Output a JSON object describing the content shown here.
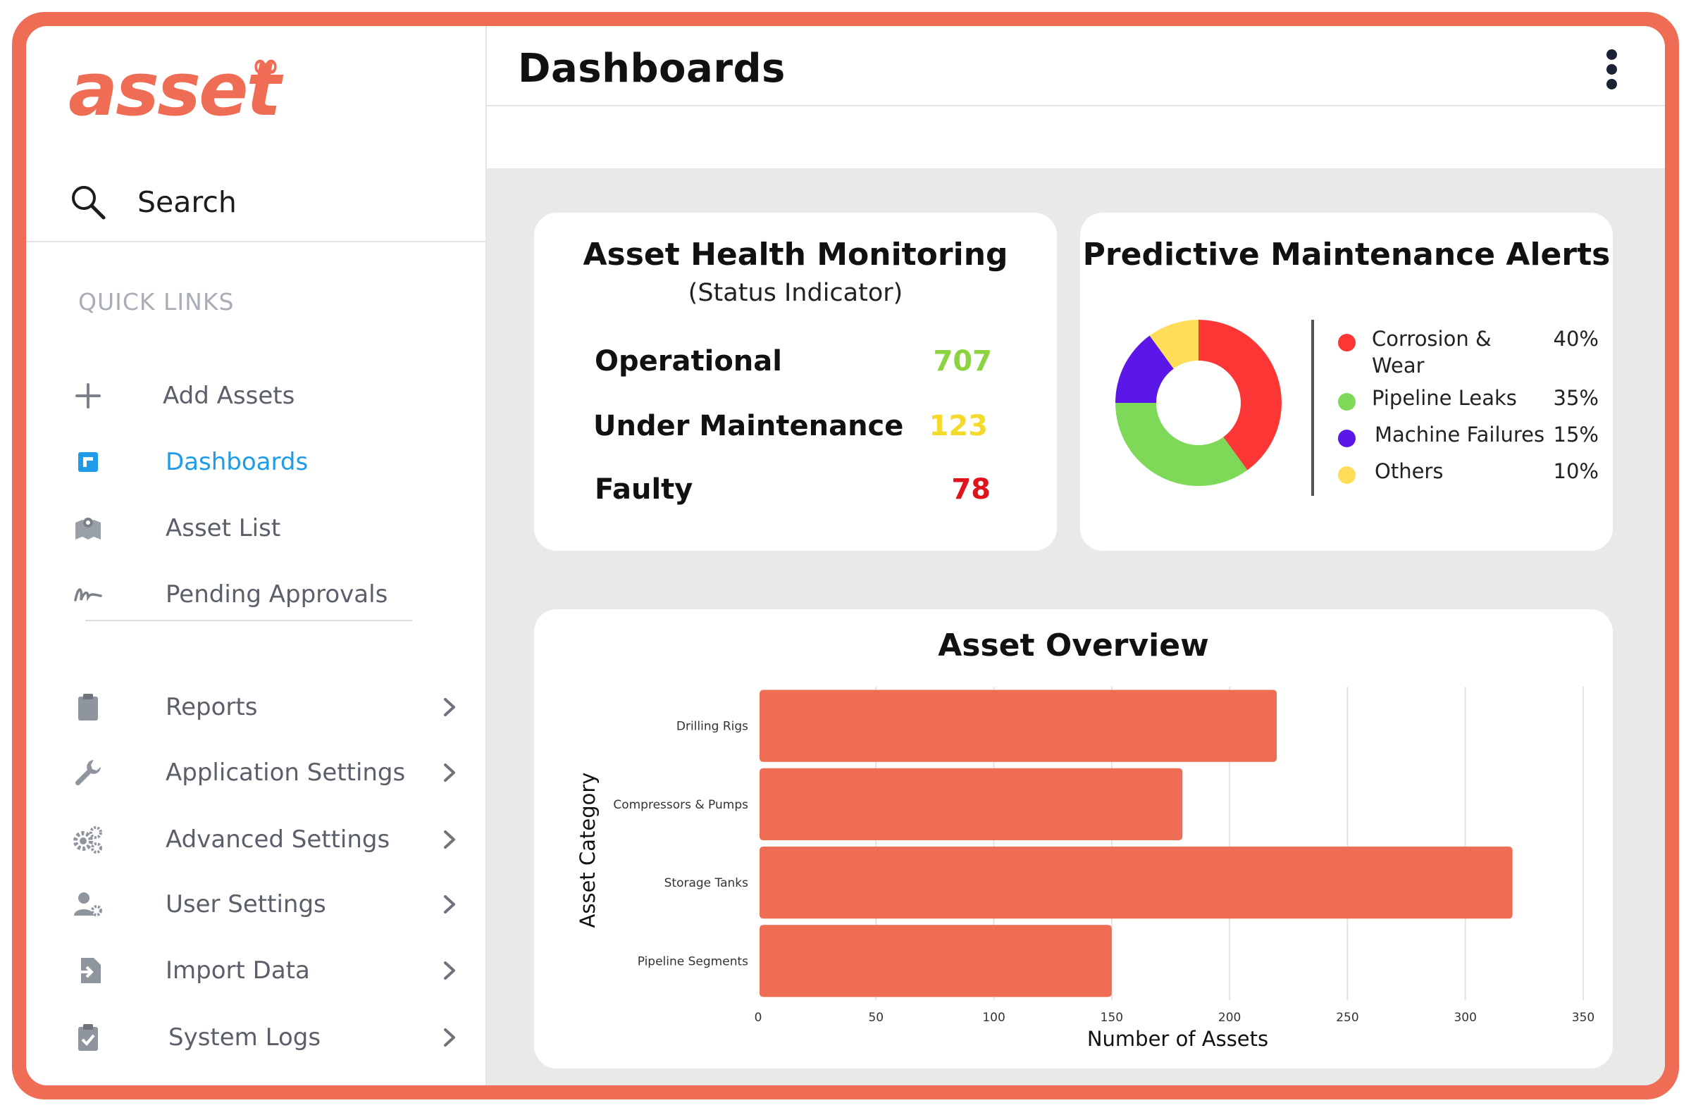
{
  "app": {
    "logo_text": "asset",
    "logo_mark": "∞"
  },
  "search": {
    "label": "Search",
    "icon": "search-icon"
  },
  "sidebar": {
    "quick_links_title": "QUICK LINKS",
    "quick_links": [
      {
        "label": "Add Assets",
        "icon": "plus-icon"
      },
      {
        "label": "Dashboards",
        "icon": "dashboard-icon",
        "active": true
      },
      {
        "label": "Asset List",
        "icon": "map-icon"
      },
      {
        "label": "Pending Approvals",
        "icon": "signature-icon"
      }
    ],
    "sections": [
      {
        "label": "Reports",
        "icon": "clipboard-icon"
      },
      {
        "label": "Application Settings",
        "icon": "wrench-icon"
      },
      {
        "label": "Advanced Settings",
        "icon": "gears-icon"
      },
      {
        "label": "User Settings",
        "icon": "user-gear-icon"
      },
      {
        "label": "Import Data",
        "icon": "import-icon"
      },
      {
        "label": "System Logs",
        "icon": "clipboard-check-icon"
      }
    ]
  },
  "header": {
    "title": "Dashboards",
    "menu_icon": "kebab-menu-icon"
  },
  "health": {
    "title": "Asset Health Monitoring",
    "subtitle": "(Status Indicator)",
    "rows": [
      {
        "label": "Operational",
        "value": "707",
        "color": "#8bd33f"
      },
      {
        "label": "Under Maintenance",
        "value": "123",
        "color": "#f4da2b"
      },
      {
        "label": "Faulty",
        "value": "78",
        "color": "#e0141c"
      }
    ]
  },
  "alerts": {
    "title": "Predictive Maintenance Alerts",
    "legend": [
      {
        "label": "Corrosion & Wear",
        "percent": "40%",
        "color": "#fc3535"
      },
      {
        "label": "Pipeline Leaks",
        "percent": "35%",
        "color": "#7dd957"
      },
      {
        "label": "Machine Failures",
        "percent": "15%",
        "color": "#5a17e8"
      },
      {
        "label": "Others",
        "percent": "10%",
        "color": "#ffdd59"
      }
    ]
  },
  "chart_data": [
    {
      "type": "pie",
      "title": "Predictive Maintenance Alerts",
      "categories": [
        "Corrosion & Wear",
        "Pipeline Leaks",
        "Machine Failures",
        "Others"
      ],
      "values": [
        40,
        35,
        15,
        10
      ],
      "colors": [
        "#fc3535",
        "#7dd957",
        "#5a17e8",
        "#ffdd59"
      ],
      "donut": true,
      "legend": "right"
    },
    {
      "type": "bar",
      "orientation": "horizontal",
      "title": "Asset Overview",
      "categories": [
        "Drilling Rigs",
        "Compressors & Pumps",
        "Storage Tanks",
        "Pipeline Segments"
      ],
      "values": [
        220,
        180,
        320,
        150
      ],
      "xlabel": "Number of Assets",
      "ylabel": "Asset Category",
      "xlim": [
        0,
        350
      ],
      "xticks": [
        "0",
        "50",
        "100",
        "150",
        "200",
        "250",
        "300",
        "350"
      ],
      "grid": true,
      "color": "#ef6c55"
    }
  ]
}
